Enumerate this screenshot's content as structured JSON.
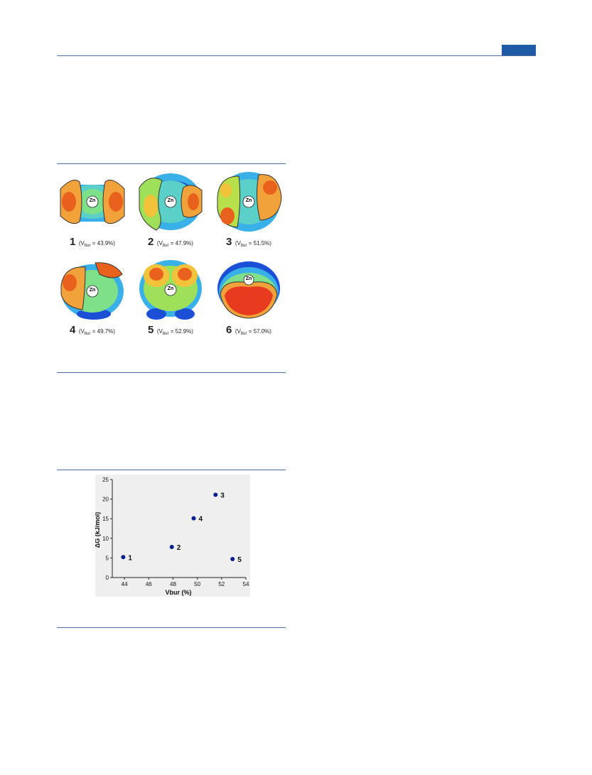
{
  "page": {
    "accent_color": "#1f5aa6",
    "rule_color": "#4a6c9b"
  },
  "figure_maps": {
    "center_label": "Zn",
    "items": [
      {
        "number": "1",
        "vbur_value": "= 43.9%)"
      },
      {
        "number": "2",
        "vbur_value": "= 47.9%)"
      },
      {
        "number": "3",
        "vbur_value": "= 51.5%)"
      },
      {
        "number": "4",
        "vbur_value": "= 49.7%)"
      },
      {
        "number": "5",
        "vbur_value": "= 52.9%)"
      },
      {
        "number": "6",
        "vbur_value": "= 57.0%)"
      }
    ],
    "vbur_prefix": "(V",
    "vbur_sub": "bur"
  },
  "chart_data": {
    "type": "scatter",
    "xlabel": "Vbur (%)",
    "ylabel": "ΔG (kJ/mol)",
    "xlim": [
      43,
      54
    ],
    "ylim": [
      0,
      25
    ],
    "x_ticks": [
      44,
      46,
      48,
      50,
      52,
      54
    ],
    "y_ticks": [
      0,
      5,
      10,
      15,
      20,
      25
    ],
    "point_color": "#0a1f8f",
    "points": [
      {
        "label": "1",
        "x": 43.9,
        "y": 5.2
      },
      {
        "label": "2",
        "x": 47.9,
        "y": 7.8
      },
      {
        "label": "3",
        "x": 51.5,
        "y": 21.1
      },
      {
        "label": "4",
        "x": 49.7,
        "y": 15.1
      },
      {
        "label": "5",
        "x": 52.9,
        "y": 4.7
      }
    ]
  }
}
